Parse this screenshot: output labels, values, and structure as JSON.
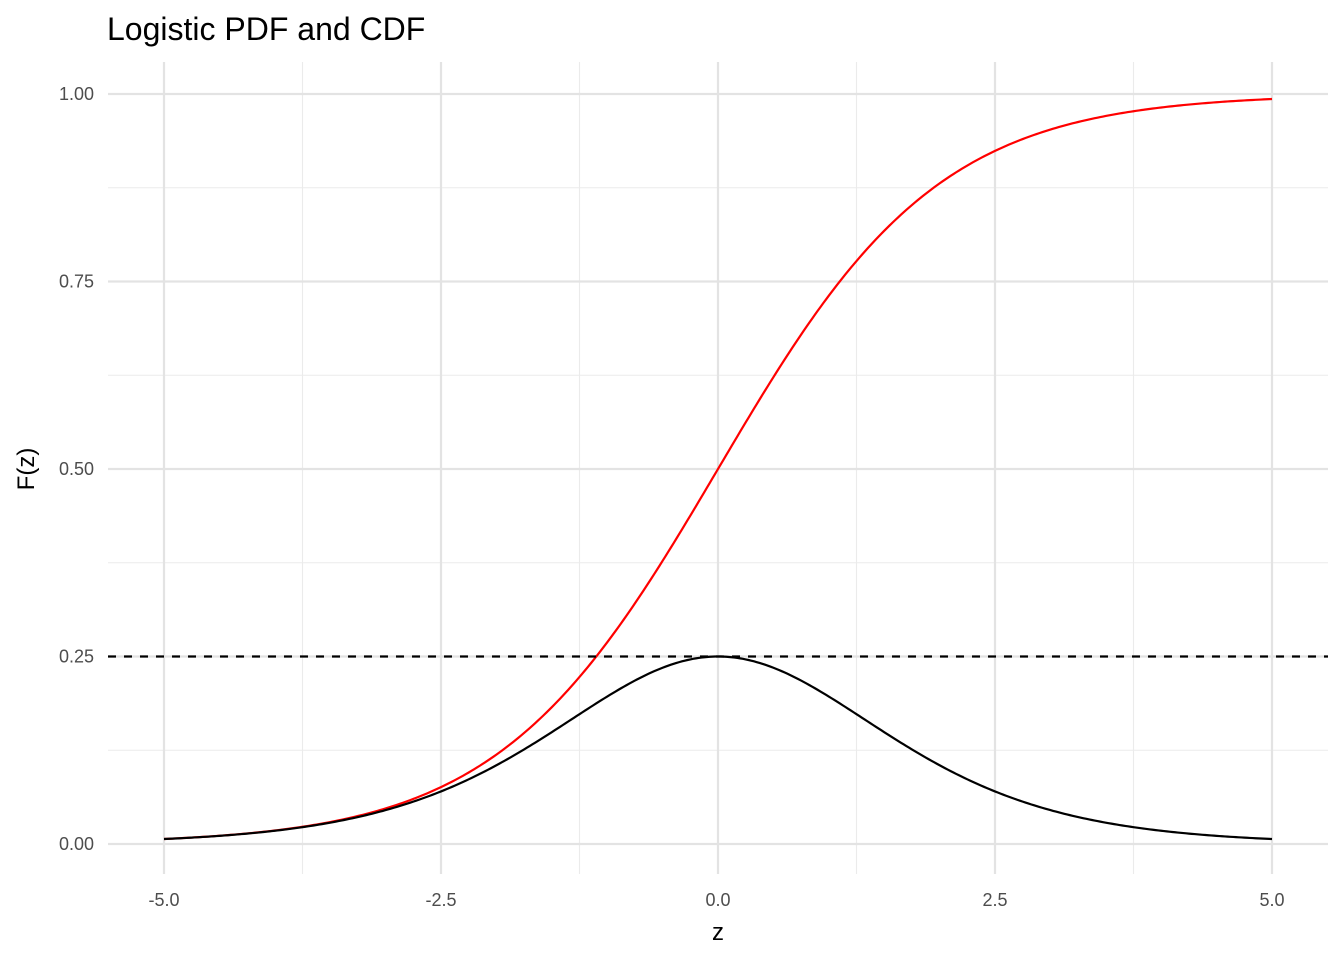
{
  "chart_data": {
    "type": "line",
    "title": "Logistic PDF and CDF",
    "xlabel": "z",
    "ylabel": "F(z)",
    "xlim": [
      -5,
      5
    ],
    "ylim": [
      0,
      1
    ],
    "x_ticks": [
      -5,
      -2.5,
      0,
      2.5,
      5
    ],
    "x_tick_labels": [
      "-5.0",
      "-2.5",
      "0.0",
      "2.5",
      "5.0"
    ],
    "y_ticks": [
      0,
      0.25,
      0.5,
      0.75,
      1
    ],
    "y_tick_labels": [
      "0.00",
      "0.25",
      "0.50",
      "0.75",
      "1.00"
    ],
    "x_minor_ticks": [
      -3.75,
      -1.25,
      1.25,
      3.75
    ],
    "y_minor_ticks": [
      0.125,
      0.375,
      0.625,
      0.875
    ],
    "grid": true,
    "legend": "none",
    "series": [
      {
        "color": "#ff0000",
        "line_style": "solid",
        "x": [
          -5,
          -4.5,
          -4,
          -3.5,
          -3,
          -2.5,
          -2,
          -1.5,
          -1,
          -0.5,
          0,
          0.5,
          1,
          1.5,
          2,
          2.5,
          3,
          3.5,
          4,
          4.5,
          5
        ],
        "y": [
          0.0067,
          0.011,
          0.018,
          0.0293,
          0.0474,
          0.0759,
          0.1192,
          0.1824,
          0.2689,
          0.3775,
          0.5,
          0.6225,
          0.7311,
          0.8176,
          0.8808,
          0.9241,
          0.9526,
          0.9707,
          0.982,
          0.989,
          0.9933
        ]
      },
      {
        "color": "#000000",
        "line_style": "solid",
        "x": [
          -5,
          -4.5,
          -4,
          -3.5,
          -3,
          -2.5,
          -2,
          -1.5,
          -1,
          -0.5,
          0,
          0.5,
          1,
          1.5,
          2,
          2.5,
          3,
          3.5,
          4,
          4.5,
          5
        ],
        "y": [
          0.0066,
          0.0109,
          0.0177,
          0.0285,
          0.0452,
          0.0701,
          0.105,
          0.1491,
          0.1966,
          0.235,
          0.25,
          0.235,
          0.1966,
          0.1491,
          0.105,
          0.0701,
          0.0452,
          0.0285,
          0.0177,
          0.0109,
          0.0066
        ]
      },
      {
        "color": "#000000",
        "line_style": "dashed",
        "hline": 0.25
      }
    ]
  }
}
